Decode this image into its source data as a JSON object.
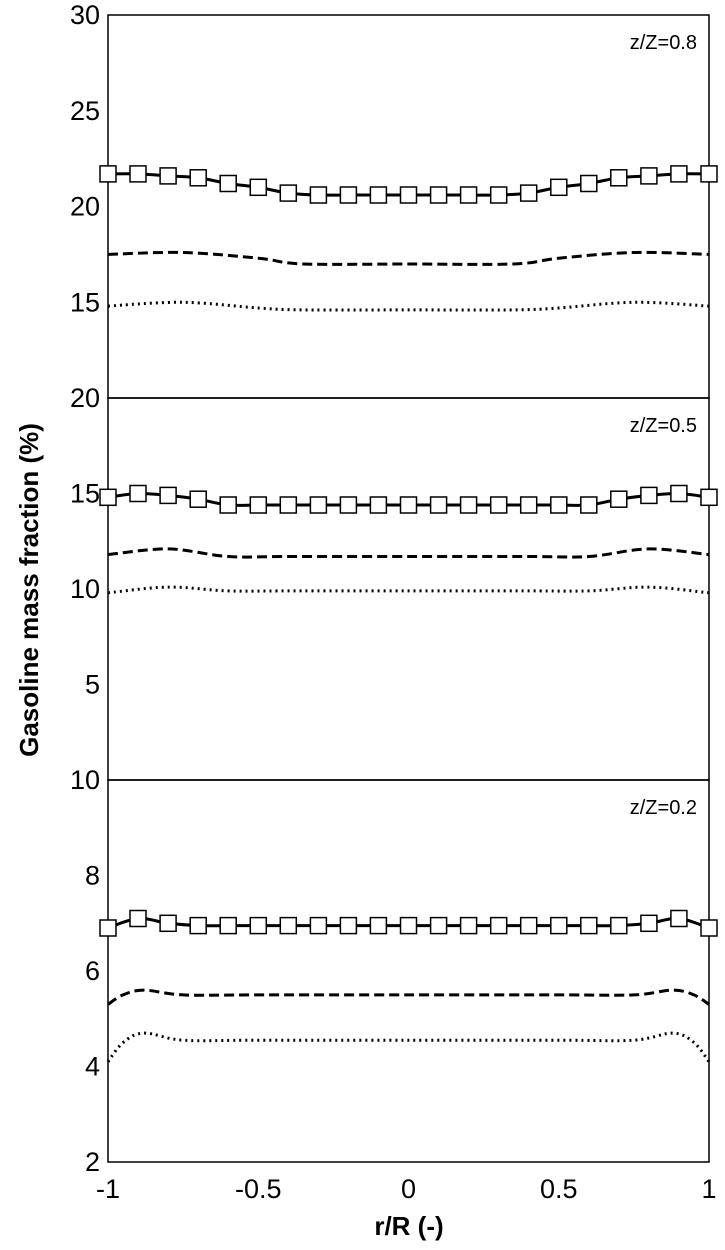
{
  "chart_data": {
    "type": "line",
    "ylabel": "Gasoline mass fraction (%)",
    "xlabel": "r/R (-)",
    "x_ticks": [
      "-1",
      "-0.5",
      "0",
      "0.5",
      "1"
    ],
    "xlim": [
      -1,
      1
    ],
    "grid": false,
    "legend": "none",
    "panels": [
      {
        "label": "z/Z=0.8",
        "ylim": [
          10,
          30
        ],
        "y_ticks": [
          "30",
          "25",
          "20",
          "15"
        ],
        "series": [
          {
            "style": "solid-square-markers",
            "x": [
              -1,
              -0.9,
              -0.8,
              -0.7,
              -0.6,
              -0.5,
              -0.4,
              -0.3,
              -0.2,
              -0.1,
              0,
              0.1,
              0.2,
              0.3,
              0.4,
              0.5,
              0.6,
              0.7,
              0.8,
              0.9,
              1
            ],
            "y": [
              21.7,
              21.7,
              21.6,
              21.5,
              21.2,
              21.0,
              20.7,
              20.6,
              20.6,
              20.6,
              20.6,
              20.6,
              20.6,
              20.6,
              20.7,
              21.0,
              21.2,
              21.5,
              21.6,
              21.7,
              21.7
            ]
          },
          {
            "style": "dashed",
            "x": [
              -1,
              -0.75,
              -0.5,
              -0.35,
              0,
              0.35,
              0.5,
              0.75,
              1
            ],
            "y": [
              17.5,
              17.6,
              17.3,
              17.0,
              17.0,
              17.0,
              17.3,
              17.6,
              17.5
            ]
          },
          {
            "style": "dotted",
            "x": [
              -1,
              -0.75,
              -0.5,
              -0.35,
              0,
              0.35,
              0.5,
              0.75,
              1
            ],
            "y": [
              14.8,
              15.0,
              14.7,
              14.6,
              14.6,
              14.6,
              14.7,
              15.0,
              14.8
            ]
          }
        ]
      },
      {
        "label": "z/Z=0.5",
        "ylim": [
          0,
          20
        ],
        "y_ticks": [
          "20",
          "15",
          "10",
          "5"
        ],
        "series": [
          {
            "style": "solid-square-markers",
            "x": [
              -1,
              -0.9,
              -0.8,
              -0.7,
              -0.6,
              -0.5,
              -0.4,
              -0.3,
              -0.2,
              -0.1,
              0,
              0.1,
              0.2,
              0.3,
              0.4,
              0.5,
              0.6,
              0.7,
              0.8,
              0.9,
              1
            ],
            "y": [
              14.8,
              15.0,
              14.9,
              14.7,
              14.4,
              14.4,
              14.4,
              14.4,
              14.4,
              14.4,
              14.4,
              14.4,
              14.4,
              14.4,
              14.4,
              14.4,
              14.4,
              14.7,
              14.9,
              15.0,
              14.8
            ]
          },
          {
            "style": "dashed",
            "x": [
              -1,
              -0.8,
              -0.6,
              -0.4,
              0,
              0.4,
              0.6,
              0.8,
              1
            ],
            "y": [
              11.8,
              12.1,
              11.7,
              11.7,
              11.7,
              11.7,
              11.7,
              12.1,
              11.8
            ]
          },
          {
            "style": "dotted",
            "x": [
              -1,
              -0.8,
              -0.6,
              -0.4,
              0,
              0.4,
              0.6,
              0.8,
              1
            ],
            "y": [
              9.8,
              10.1,
              9.9,
              9.9,
              9.9,
              9.9,
              9.9,
              10.1,
              9.8
            ]
          }
        ]
      },
      {
        "label": "z/Z=0.2",
        "ylim": [
          2,
          10
        ],
        "y_ticks": [
          "10",
          "8",
          "6",
          "4",
          "2"
        ],
        "series": [
          {
            "style": "solid-square-markers",
            "x": [
              -1,
              -0.9,
              -0.8,
              -0.7,
              -0.6,
              -0.5,
              -0.4,
              -0.3,
              -0.2,
              -0.1,
              0,
              0.1,
              0.2,
              0.3,
              0.4,
              0.5,
              0.6,
              0.7,
              0.8,
              0.9,
              1
            ],
            "y": [
              6.9,
              7.1,
              7.0,
              6.95,
              6.95,
              6.95,
              6.95,
              6.95,
              6.95,
              6.95,
              6.95,
              6.95,
              6.95,
              6.95,
              6.95,
              6.95,
              6.95,
              6.95,
              7.0,
              7.1,
              6.9
            ]
          },
          {
            "style": "dashed",
            "x": [
              -1,
              -0.95,
              -0.88,
              -0.75,
              -0.5,
              0,
              0.5,
              0.75,
              0.88,
              0.95,
              1
            ],
            "y": [
              5.3,
              5.5,
              5.6,
              5.5,
              5.5,
              5.5,
              5.5,
              5.5,
              5.6,
              5.5,
              5.3
            ]
          },
          {
            "style": "dotted",
            "x": [
              -1,
              -0.95,
              -0.88,
              -0.75,
              -0.5,
              0,
              0.5,
              0.75,
              0.88,
              0.95,
              1
            ],
            "y": [
              4.1,
              4.5,
              4.7,
              4.55,
              4.55,
              4.55,
              4.55,
              4.55,
              4.7,
              4.5,
              4.1
            ]
          }
        ]
      }
    ]
  }
}
